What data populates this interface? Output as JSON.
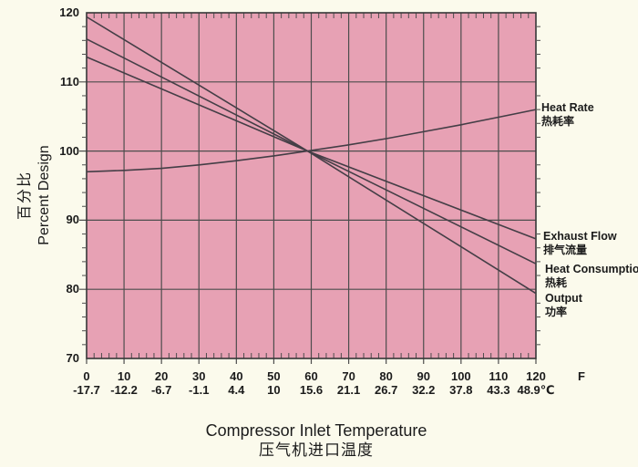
{
  "chart_data": {
    "type": "line",
    "title_en": "Compressor Inlet Temperature",
    "title_zh": "压气机进口温度",
    "ylabel_zh": "百分比",
    "ylabel_en": "Percent Design",
    "x_axis": {
      "xlim": [
        0,
        120
      ],
      "fahrenheit_ticks": [
        "0",
        "10",
        "20",
        "30",
        "40",
        "50",
        "60",
        "70",
        "80",
        "90",
        "100",
        "110",
        "120"
      ],
      "fahrenheit_unit": "F",
      "celsius_ticks": [
        "-17.7",
        "-12.2",
        "-6.7",
        "-1.1",
        "4.4",
        "10",
        "15.6",
        "21.1",
        "26.7",
        "32.2",
        "37.8",
        "43.3",
        "48.9"
      ],
      "celsius_unit": "℃"
    },
    "y_axis": {
      "ylim": [
        70,
        120
      ],
      "ticks": [
        "120",
        "110",
        "100",
        "90",
        "80",
        "70"
      ]
    },
    "grid": {
      "x_interval": 10,
      "y_interval": 10,
      "minor_x": 2,
      "minor_y": 2,
      "grid_on": true
    },
    "series": [
      {
        "name_en": "Heat Rate",
        "name_zh": "热耗率",
        "points": [
          [
            0,
            97
          ],
          [
            10,
            97.2
          ],
          [
            20,
            97.5
          ],
          [
            30,
            98
          ],
          [
            40,
            98.6
          ],
          [
            50,
            99.3
          ],
          [
            59,
            100
          ],
          [
            70,
            100.9
          ],
          [
            80,
            101.8
          ],
          [
            90,
            102.8
          ],
          [
            100,
            103.8
          ],
          [
            110,
            104.9
          ],
          [
            120,
            106
          ]
        ]
      },
      {
        "name_en": "Exhaust Flow",
        "name_zh": "排气流量",
        "points": [
          [
            0,
            113.6
          ],
          [
            59,
            100
          ],
          [
            120,
            87.3
          ]
        ]
      },
      {
        "name_en": "Heat Consumption",
        "name_zh": "热耗",
        "points": [
          [
            0,
            116.2
          ],
          [
            59,
            100
          ],
          [
            120,
            83.7
          ]
        ]
      },
      {
        "name_en": "Output",
        "name_zh": "功率",
        "points": [
          [
            0,
            119.4
          ],
          [
            59,
            100
          ],
          [
            120,
            79.4
          ]
        ]
      }
    ],
    "legend_position": "right-outside",
    "colors": {
      "page_bg": "#fbfaec",
      "plot_bg": "#e7a1b4",
      "grid": "#4d4d4d",
      "frame": "#383838",
      "line": "#443e46",
      "text": "#1b1b1b"
    }
  }
}
